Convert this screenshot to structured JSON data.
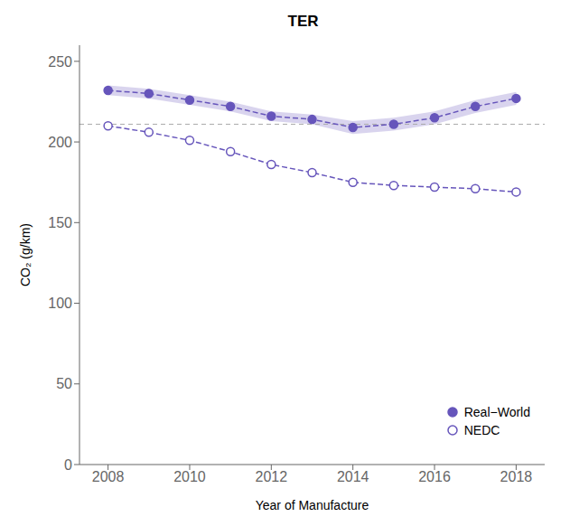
{
  "chart_data": {
    "type": "line",
    "title": "TER",
    "xlabel": "Year of Manufacture",
    "ylabel": "CO₂  (g/km)",
    "x": [
      2008,
      2009,
      2010,
      2011,
      2012,
      2013,
      2014,
      2015,
      2016,
      2017,
      2018
    ],
    "series": [
      {
        "name": "Real−World",
        "color": "#6655bb",
        "marker": "circle",
        "line_style": "dashed",
        "values": [
          232,
          230,
          226,
          222,
          216,
          214,
          209,
          211,
          215,
          222,
          227
        ],
        "lower": [
          229,
          227,
          223,
          219,
          213,
          211,
          205,
          207,
          211,
          218,
          223
        ],
        "upper": [
          235,
          233,
          229,
          225,
          219,
          217,
          213,
          215,
          219,
          226,
          231
        ]
      },
      {
        "name": "NEDC",
        "color": "#6655bb",
        "marker": "open_circle",
        "line_style": "dashed",
        "values": [
          210,
          206,
          201,
          194,
          186,
          181,
          175,
          173,
          172,
          171,
          169
        ]
      }
    ],
    "reference_lines": [
      211
    ],
    "xlim": [
      2007.3,
      2018.7
    ],
    "xticks": [
      2008,
      2010,
      2012,
      2014,
      2016,
      2018
    ],
    "ylim": [
      0,
      260
    ],
    "yticks": [
      0,
      50,
      100,
      150,
      200,
      250
    ],
    "grid": false,
    "legend": "lower right"
  }
}
